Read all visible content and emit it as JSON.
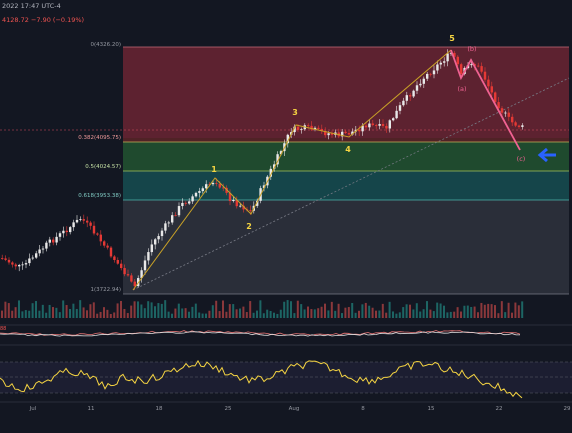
{
  "header": {
    "datetime": "2022 17:47 UTC-4",
    "quote": "4128.72  −7.90 (−0.19%)"
  },
  "fib_levels": [
    {
      "label": "0(4326.20)"
    },
    {
      "label": "0.382(4095.75)"
    },
    {
      "label": "0.5(4024.57)"
    },
    {
      "label": "0.618(3953.38)"
    },
    {
      "label": "1(3722.94)"
    }
  ],
  "wave_labels": {
    "w1": "1",
    "w2": "2",
    "w3": "3",
    "w4": "4",
    "w5": "5",
    "a": "(a)",
    "b": "(b)",
    "c": "(c)"
  },
  "indicator_value": "88",
  "x_axis": [
    "Jul",
    "11",
    "18",
    "25",
    "Aug",
    "8",
    "15",
    "22",
    "29"
  ],
  "colors": {
    "background": "#131722",
    "bull": "#e8e8e8",
    "bear": "#e53935",
    "wave_numbers": "#f5d442",
    "correction_labels": "#f06292",
    "arrow": "#2962ff",
    "rsi": "#f5d442"
  },
  "icons": {
    "target": "left-arrow-icon"
  }
}
